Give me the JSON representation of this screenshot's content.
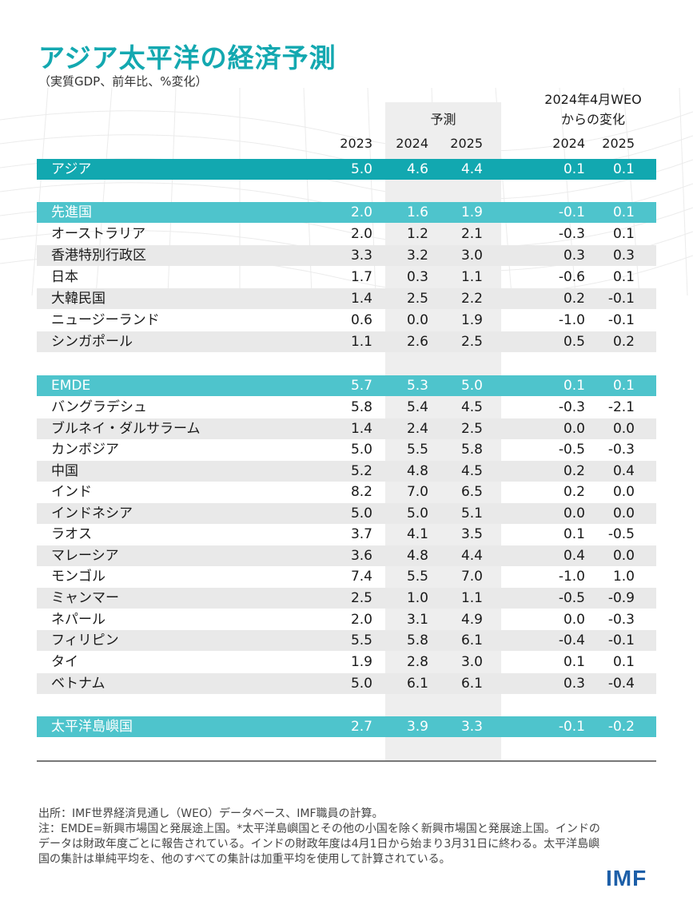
{
  "title": "アジア太平洋の経済予測",
  "subtitle": "（実質GDP、前年比、%変化）",
  "headers": {
    "forecast": "予測",
    "weo_line1": "2024年4月WEO",
    "weo_line2": "からの変化",
    "years": [
      "2023",
      "2024",
      "2025",
      "2024",
      "2025"
    ]
  },
  "rows": [
    {
      "name": "アジア",
      "values": [
        "5.0",
        "4.6",
        "4.4",
        "0.1",
        "0.1"
      ]
    },
    {
      "name": "先進国",
      "values": [
        "2.0",
        "1.6",
        "1.9",
        "-0.1",
        "0.1"
      ]
    },
    {
      "name": "オーストラリア",
      "values": [
        "2.0",
        "1.2",
        "2.1",
        "-0.3",
        "0.1"
      ]
    },
    {
      "name": "香港特別行政区",
      "values": [
        "3.3",
        "3.2",
        "3.0",
        "0.3",
        "0.3"
      ]
    },
    {
      "name": "日本",
      "values": [
        "1.7",
        "0.3",
        "1.1",
        "-0.6",
        "0.1"
      ]
    },
    {
      "name": "大韓民国",
      "values": [
        "1.4",
        "2.5",
        "2.2",
        "0.2",
        "-0.1"
      ]
    },
    {
      "name": "ニュージーランド",
      "values": [
        "0.6",
        "0.0",
        "1.9",
        "-1.0",
        "-0.1"
      ]
    },
    {
      "name": "シンガポール",
      "values": [
        "1.1",
        "2.6",
        "2.5",
        "0.5",
        "0.2"
      ]
    },
    {
      "name": "EMDE",
      "values": [
        "5.7",
        "5.3",
        "5.0",
        "0.1",
        "0.1"
      ]
    },
    {
      "name": "バングラデシュ",
      "values": [
        "5.8",
        "5.4",
        "4.5",
        "-0.3",
        "-2.1"
      ]
    },
    {
      "name": "ブルネイ・ダルサラーム",
      "values": [
        "1.4",
        "2.4",
        "2.5",
        "0.0",
        "0.0"
      ]
    },
    {
      "name": "カンボジア",
      "values": [
        "5.0",
        "5.5",
        "5.8",
        "-0.5",
        "-0.3"
      ]
    },
    {
      "name": "中国",
      "values": [
        "5.2",
        "4.8",
        "4.5",
        "0.2",
        "0.4"
      ]
    },
    {
      "name": "インド",
      "values": [
        "8.2",
        "7.0",
        "6.5",
        "0.2",
        "0.0"
      ]
    },
    {
      "name": "インドネシア",
      "values": [
        "5.0",
        "5.0",
        "5.1",
        "0.0",
        "0.0"
      ]
    },
    {
      "name": "ラオス",
      "values": [
        "3.7",
        "4.1",
        "3.5",
        "0.1",
        "-0.5"
      ]
    },
    {
      "name": "マレーシア",
      "values": [
        "3.6",
        "4.8",
        "4.4",
        "0.4",
        "0.0"
      ]
    },
    {
      "name": "モンゴル",
      "values": [
        "7.4",
        "5.5",
        "7.0",
        "-1.0",
        "1.0"
      ]
    },
    {
      "name": "ミャンマー",
      "values": [
        "2.5",
        "1.0",
        "1.1",
        "-0.5",
        "-0.9"
      ]
    },
    {
      "name": "ネパール",
      "values": [
        "2.0",
        "3.1",
        "4.9",
        "0.0",
        "-0.3"
      ]
    },
    {
      "name": "フィリピン",
      "values": [
        "5.5",
        "5.8",
        "6.1",
        "-0.4",
        "-0.1"
      ]
    },
    {
      "name": "タイ",
      "values": [
        "1.9",
        "2.8",
        "3.0",
        "0.1",
        "0.1"
      ]
    },
    {
      "name": "ベトナム",
      "values": [
        "5.0",
        "6.1",
        "6.1",
        "0.3",
        "-0.4"
      ]
    },
    {
      "name": "太平洋島嶼国",
      "values": [
        "2.7",
        "3.9",
        "3.3",
        "-0.1",
        "-0.2"
      ]
    }
  ],
  "notes": {
    "source": "出所：IMF世界経済見通し（WEO）データベース、IMF職員の計算。",
    "note": "注：EMDE=新興市場国と発展途上国。*太平洋島嶼国とその他の小国を除く新興市場国と発展途上国。インドのデータは財政年度ごとに報告されている。インドの財政年度は4月1日から始まり3月31日に終わる。太平洋島嶼国の集計は単純平均を、他のすべての集計は加重平均を使用して計算されている。"
  },
  "logo": "IMF",
  "colors": {
    "accent": "#13a8b0",
    "accent_light": "#4ec4cc",
    "logo": "#1d5fa8"
  }
}
